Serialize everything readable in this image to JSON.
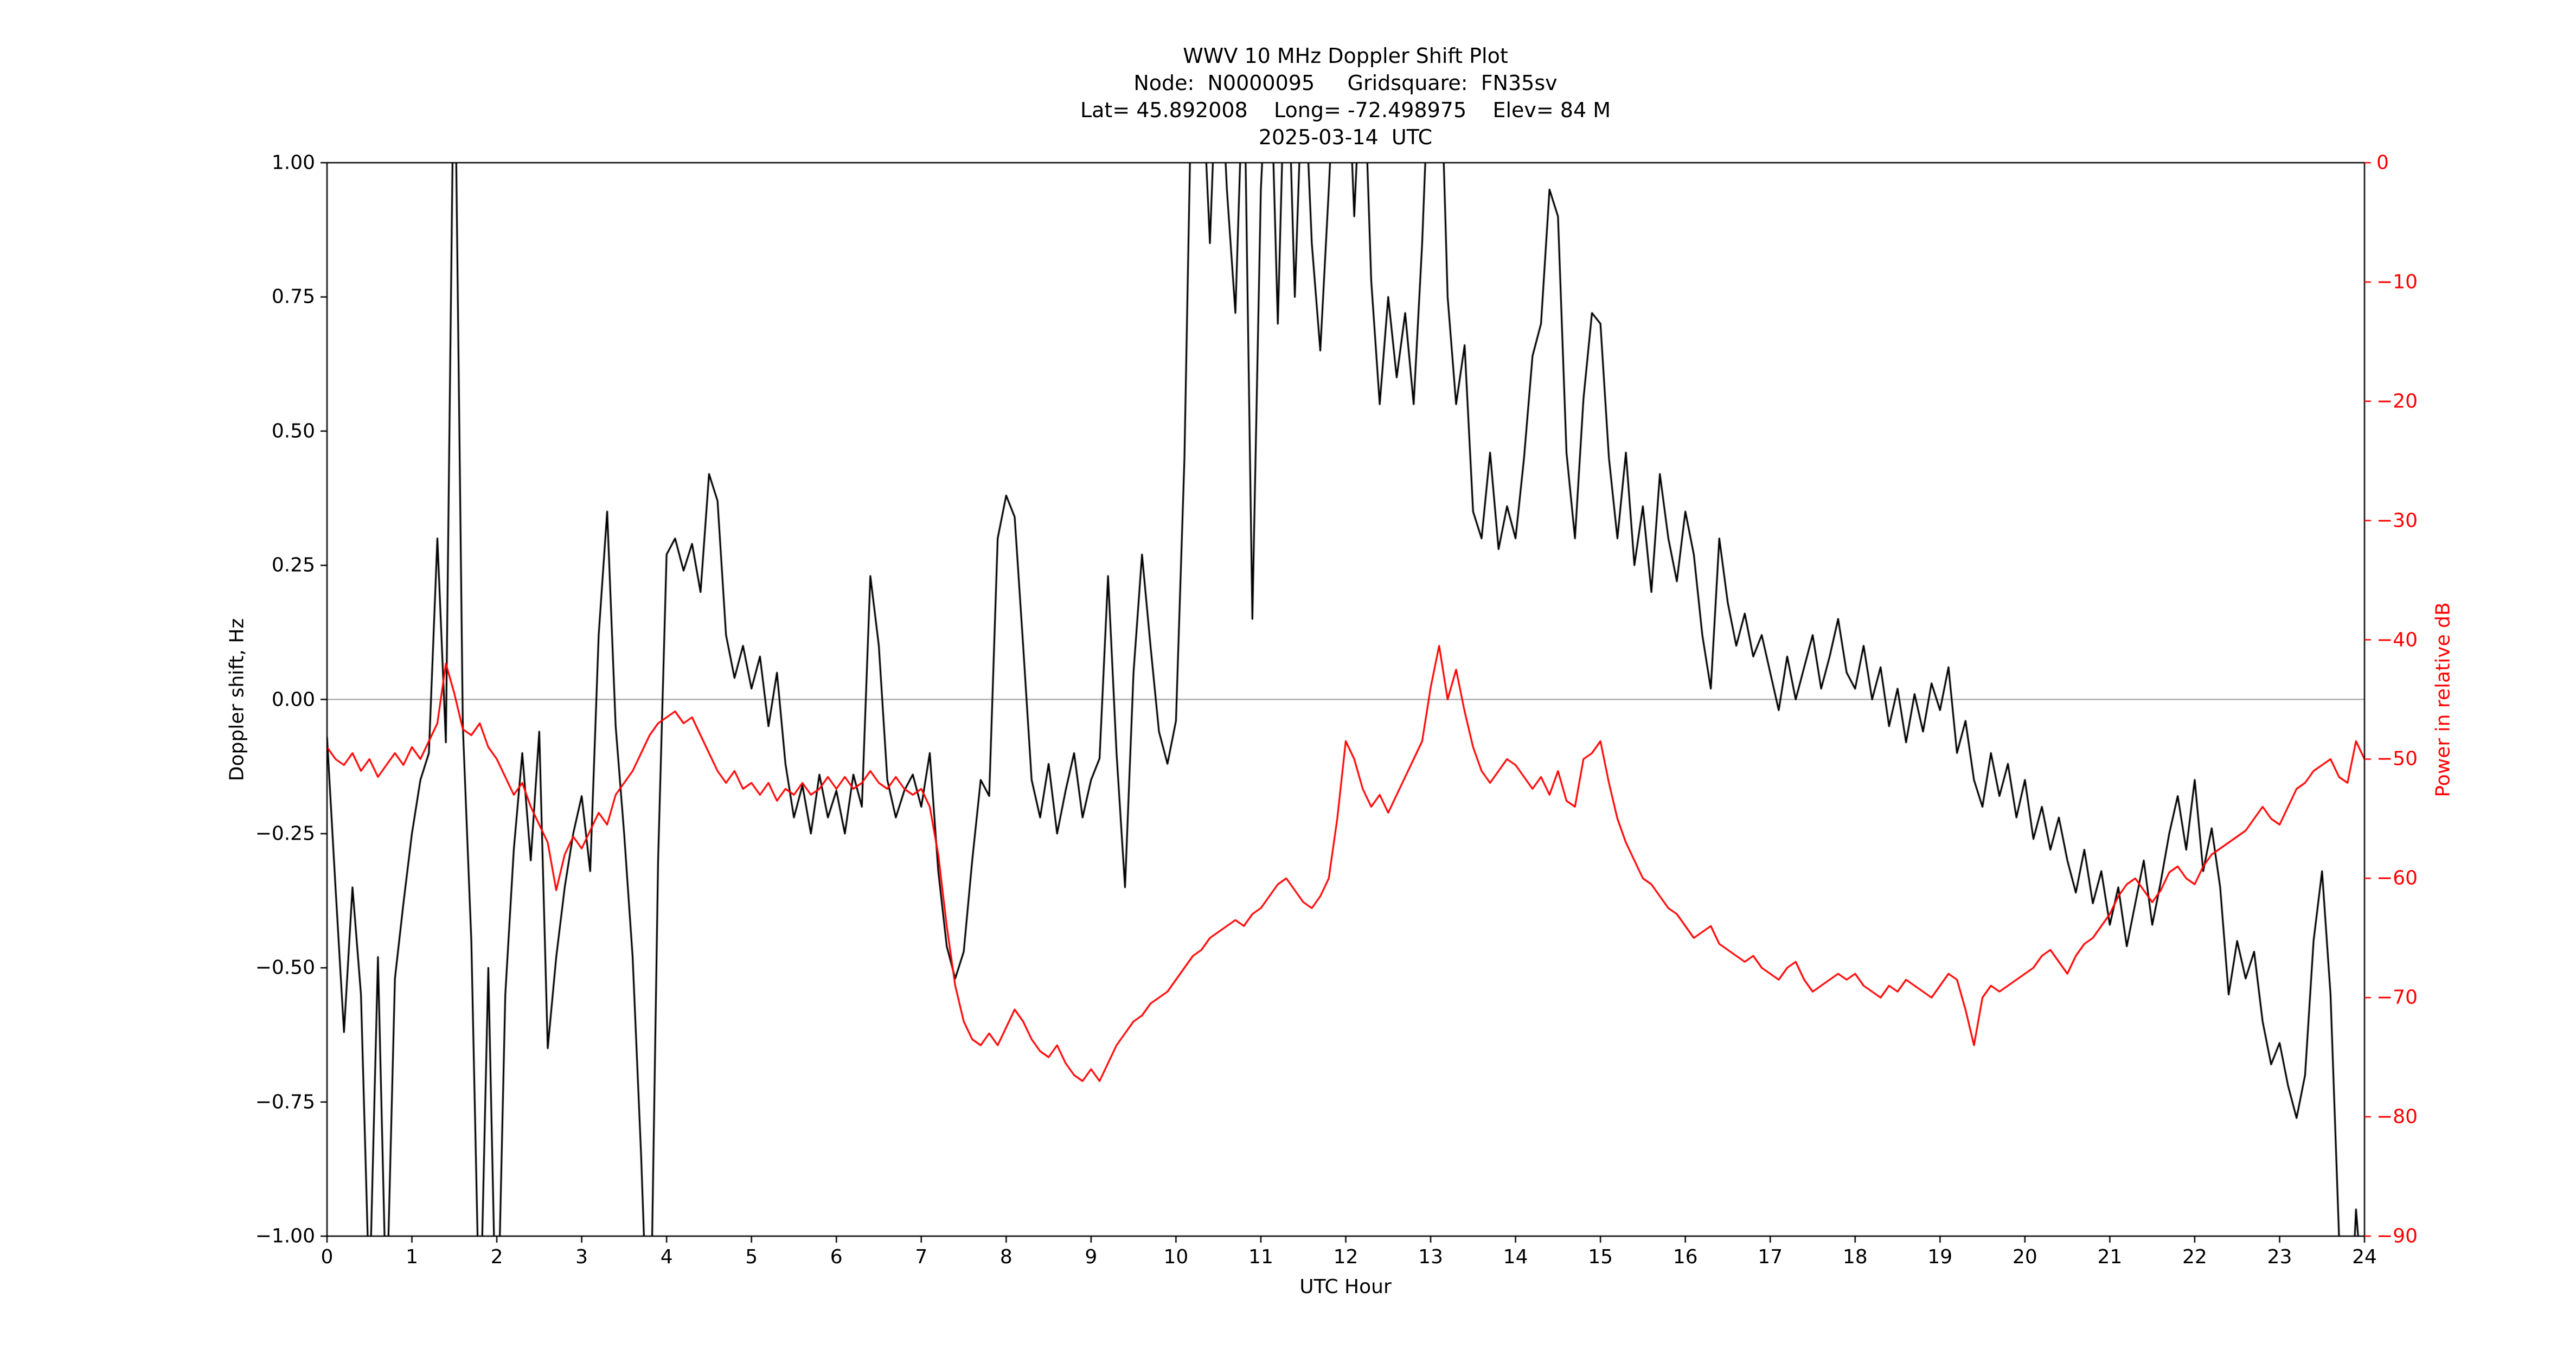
{
  "figure": {
    "title_lines": [
      "WWV 10 MHz Doppler Shift Plot",
      "Node:  N0000095     Gridsquare:  FN35sv",
      "Lat= 45.892008    Long= -72.498975    Elev= 84 M",
      "2025-03-14  UTC"
    ]
  },
  "chart_data": {
    "type": "line",
    "title": "WWV 10 MHz Doppler Shift Plot",
    "subtitle_lines": [
      "Node:  N0000095     Gridsquare:  FN35sv",
      "Lat= 45.892008    Long= -72.498975    Elev= 84 M",
      "2025-03-14  UTC"
    ],
    "xlabel": "UTC Hour",
    "ylabel_left": "Doppler shift, Hz",
    "ylabel_right": "Power in relative dB",
    "x_range": [
      0,
      24
    ],
    "y_left_range": [
      -1.0,
      1.0
    ],
    "y_right_range": [
      -90,
      0
    ],
    "grid": false,
    "legend": "none",
    "x_ticks": [
      "0",
      "1",
      "2",
      "3",
      "4",
      "5",
      "6",
      "7",
      "8",
      "9",
      "10",
      "11",
      "12",
      "13",
      "14",
      "15",
      "16",
      "17",
      "18",
      "19",
      "20",
      "21",
      "22",
      "23",
      "24"
    ],
    "y_left_ticks": [
      "1.00",
      "0.75",
      "0.50",
      "0.25",
      "0.00",
      "−0.25",
      "−0.50",
      "−0.75",
      "−1.00"
    ],
    "y_right_ticks": [
      "0",
      "−10",
      "−20",
      "−30",
      "−40",
      "−50",
      "−60",
      "−70",
      "−80",
      "−90"
    ],
    "colors": {
      "doppler": "#000000",
      "power": "#ff0000",
      "zero_line": "#999999",
      "frame": "#000000"
    },
    "zero_line_y": 0.0,
    "x_step": 0.1,
    "series": [
      {
        "name": "Doppler shift, Hz",
        "axis": "left",
        "color": "#000000",
        "values": [
          -0.07,
          -0.35,
          -0.62,
          -0.35,
          -0.55,
          -1.12,
          -0.48,
          -1.15,
          -0.52,
          -0.38,
          -0.25,
          -0.15,
          -0.1,
          0.3,
          -0.08,
          1.3,
          -0.05,
          -0.45,
          -1.2,
          -0.5,
          -1.25,
          -0.55,
          -0.28,
          -0.1,
          -0.3,
          -0.06,
          -0.65,
          -0.48,
          -0.35,
          -0.25,
          -0.18,
          -0.32,
          0.12,
          0.35,
          -0.05,
          -0.25,
          -0.48,
          -0.85,
          -1.3,
          -0.3,
          0.27,
          0.3,
          0.24,
          0.29,
          0.2,
          0.42,
          0.37,
          0.12,
          0.04,
          0.1,
          0.02,
          0.08,
          -0.05,
          0.05,
          -0.12,
          -0.22,
          -0.16,
          -0.25,
          -0.14,
          -0.22,
          -0.17,
          -0.25,
          -0.14,
          -0.2,
          0.23,
          0.1,
          -0.15,
          -0.22,
          -0.17,
          -0.14,
          -0.2,
          -0.1,
          -0.32,
          -0.46,
          -0.52,
          -0.47,
          -0.3,
          -0.15,
          -0.18,
          0.3,
          0.38,
          0.34,
          0.1,
          -0.15,
          -0.22,
          -0.12,
          -0.25,
          -0.17,
          -0.1,
          -0.22,
          -0.15,
          -0.11,
          0.23,
          -0.1,
          -0.35,
          0.05,
          0.27,
          0.1,
          -0.06,
          -0.12,
          -0.04,
          0.45,
          1.3,
          1.2,
          0.85,
          1.28,
          0.95,
          0.72,
          1.22,
          0.15,
          0.95,
          1.28,
          0.7,
          1.3,
          0.75,
          1.22,
          0.85,
          0.65,
          0.95,
          1.28,
          1.3,
          0.9,
          1.26,
          0.78,
          0.55,
          0.75,
          0.6,
          0.72,
          0.55,
          0.85,
          1.26,
          1.3,
          0.75,
          0.55,
          0.66,
          0.35,
          0.3,
          0.46,
          0.28,
          0.36,
          0.3,
          0.45,
          0.64,
          0.7,
          0.95,
          0.9,
          0.46,
          0.3,
          0.56,
          0.72,
          0.7,
          0.45,
          0.3,
          0.46,
          0.25,
          0.36,
          0.2,
          0.42,
          0.3,
          0.22,
          0.35,
          0.27,
          0.12,
          0.02,
          0.3,
          0.18,
          0.1,
          0.16,
          0.08,
          0.12,
          0.05,
          -0.02,
          0.08,
          0.0,
          0.06,
          0.12,
          0.02,
          0.08,
          0.15,
          0.05,
          0.02,
          0.1,
          0.0,
          0.06,
          -0.05,
          0.02,
          -0.08,
          0.01,
          -0.06,
          0.03,
          -0.02,
          0.06,
          -0.1,
          -0.04,
          -0.15,
          -0.2,
          -0.1,
          -0.18,
          -0.12,
          -0.22,
          -0.15,
          -0.26,
          -0.2,
          -0.28,
          -0.22,
          -0.3,
          -0.36,
          -0.28,
          -0.38,
          -0.32,
          -0.42,
          -0.35,
          -0.46,
          -0.38,
          -0.3,
          -0.42,
          -0.34,
          -0.25,
          -0.18,
          -0.28,
          -0.15,
          -0.32,
          -0.24,
          -0.35,
          -0.55,
          -0.45,
          -0.52,
          -0.47,
          -0.6,
          -0.68,
          -0.64,
          -0.72,
          -0.78,
          -0.7,
          -0.45,
          -0.32,
          -0.55,
          -1.0,
          -1.3,
          -0.95,
          -1.15
        ]
      },
      {
        "name": "Power in relative dB",
        "axis": "right",
        "color": "#ff0000",
        "values": [
          -49,
          -50,
          -50.5,
          -49.5,
          -51,
          -50,
          -51.5,
          -50.5,
          -49.5,
          -50.5,
          -49,
          -50,
          -48.5,
          -47,
          -42,
          -44.5,
          -47.5,
          -48,
          -47,
          -49,
          -50,
          -51.5,
          -53,
          -52,
          -54,
          -55.5,
          -57,
          -61,
          -58,
          -56.5,
          -57.5,
          -56,
          -54.5,
          -55.5,
          -53,
          -52,
          -51,
          -49.5,
          -48,
          -47,
          -46.5,
          -46,
          -47,
          -46.5,
          -48,
          -49.5,
          -51,
          -52,
          -51,
          -52.5,
          -52,
          -53,
          -52,
          -53.5,
          -52.5,
          -53,
          -52,
          -53,
          -52.5,
          -51.5,
          -52.5,
          -51.5,
          -52.5,
          -52,
          -51,
          -52,
          -52.5,
          -51.5,
          -52.5,
          -53,
          -52.5,
          -54,
          -58,
          -64,
          -69,
          -72,
          -73.5,
          -74,
          -73,
          -74,
          -72.5,
          -71,
          -72,
          -73.5,
          -74.5,
          -75,
          -74,
          -75.5,
          -76.5,
          -77,
          -76,
          -77,
          -75.5,
          -74,
          -73,
          -72,
          -71.5,
          -70.5,
          -70,
          -69.5,
          -68.5,
          -67.5,
          -66.5,
          -66,
          -65,
          -64.5,
          -64,
          -63.5,
          -64,
          -63,
          -62.5,
          -61.5,
          -60.5,
          -60,
          -61,
          -62,
          -62.5,
          -61.5,
          -60,
          -55,
          -48.5,
          -50,
          -52.5,
          -54,
          -53,
          -54.5,
          -53,
          -51.5,
          -50,
          -48.5,
          -44,
          -40.5,
          -45,
          -42.5,
          -46,
          -49,
          -51,
          -52,
          -51,
          -50,
          -50.5,
          -51.5,
          -52.5,
          -51.5,
          -53,
          -51,
          -53.5,
          -54,
          -50,
          -49.5,
          -48.5,
          -52,
          -55,
          -57,
          -58.5,
          -60,
          -60.5,
          -61.5,
          -62.5,
          -63,
          -64,
          -65,
          -64.5,
          -64,
          -65.5,
          -66,
          -66.5,
          -67,
          -66.5,
          -67.5,
          -68,
          -68.5,
          -67.5,
          -67,
          -68.5,
          -69.5,
          -69,
          -68.5,
          -68,
          -68.5,
          -68,
          -69,
          -69.5,
          -70,
          -69,
          -69.5,
          -68.5,
          -69,
          -69.5,
          -70,
          -69,
          -68,
          -68.5,
          -71,
          -74,
          -70,
          -69,
          -69.5,
          -69,
          -68.5,
          -68,
          -67.5,
          -66.5,
          -66,
          -67,
          -68,
          -66.5,
          -65.5,
          -65,
          -64,
          -63,
          -61.5,
          -60.5,
          -60,
          -61,
          -62,
          -61,
          -59.5,
          -59,
          -60,
          -60.5,
          -59,
          -58,
          -57.5,
          -57,
          -56.5,
          -56,
          -55,
          -54,
          -55,
          -55.5,
          -54,
          -52.5,
          -52,
          -51,
          -50.5,
          -50,
          -51.5,
          -52,
          -48.5,
          -50
        ]
      }
    ]
  }
}
